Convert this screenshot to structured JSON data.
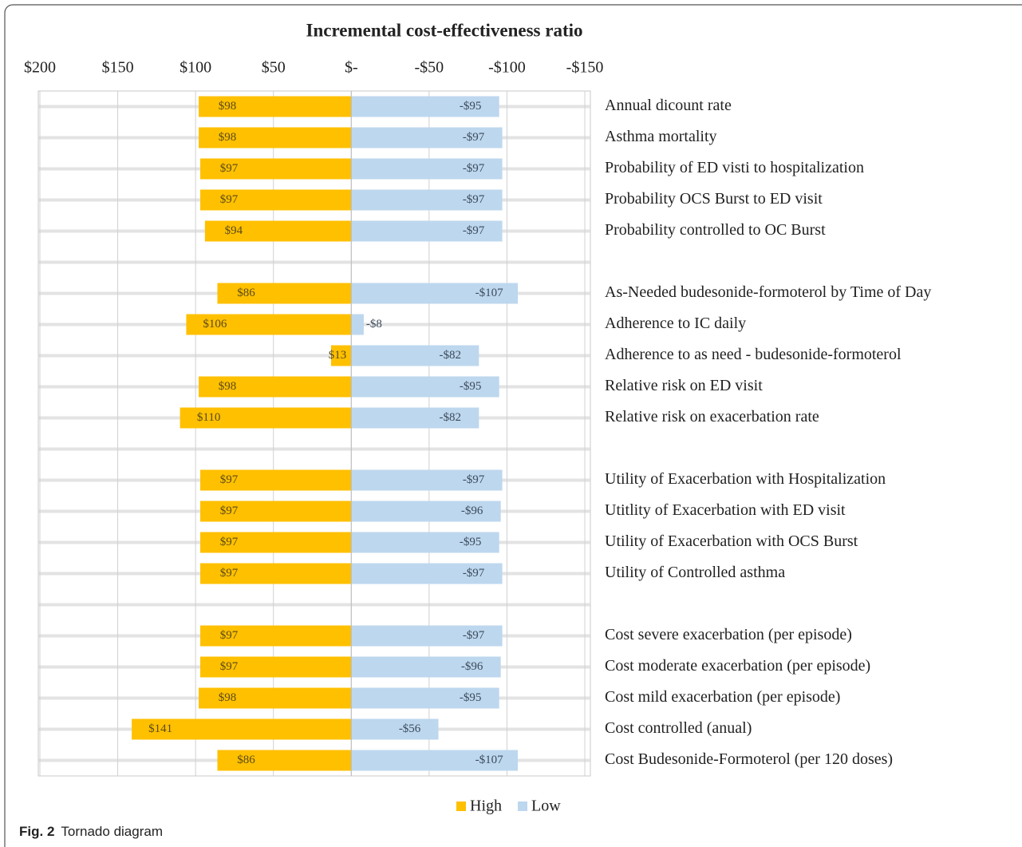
{
  "chart_data": {
    "type": "tornado",
    "title": "Incremental cost-effectiveness ratio",
    "categories": [
      "Annual dicount rate",
      "Asthma mortality",
      "Probability of ED visti to hospitalization",
      "Probability OCS Burst to ED visit",
      "Probability controlled to OC Burst",
      null,
      "As-Needed budesonide-formoterol  by Time of Day",
      "Adherence to IC daily",
      "Adherence to as need - budesonide-formoterol",
      "Relative risk on ED visit",
      "Relative risk on exacerbation rate",
      null,
      "Utility of Exacerbation with Hospitalization",
      "Utitlity of Exacerbation with  ED visit",
      "Utility of Exacerbation with OCS Burst",
      "Utility of Controlled asthma",
      null,
      "Cost  severe exacerbation  (per episode)",
      "Cost moderate exacerbation  (per episode)",
      "Cost mild exacerbation  (per episode)",
      "Cost controlled (anual)",
      "Cost Budesonide-Formoterol (per 120 doses)"
    ],
    "series": [
      {
        "name": "High",
        "color": "#ffc000",
        "values": [
          98,
          98,
          97,
          97,
          94,
          null,
          86,
          106,
          13,
          98,
          110,
          null,
          97,
          97,
          97,
          97,
          null,
          97,
          97,
          98,
          141,
          86
        ],
        "value_labels": [
          "$98",
          "$98",
          "$97",
          "$97",
          "$94",
          null,
          "$86",
          "$106",
          "$13",
          "$98",
          "$110",
          null,
          "$97",
          "$97",
          "$97",
          "$97",
          null,
          "$97",
          "$97",
          "$98",
          "$141",
          "$86"
        ]
      },
      {
        "name": "Low",
        "color": "#bdd7ee",
        "values": [
          -95,
          -97,
          -97,
          -97,
          -97,
          null,
          -107,
          -8,
          -82,
          -95,
          -82,
          null,
          -97,
          -96,
          -95,
          -97,
          null,
          -97,
          -96,
          -95,
          -56,
          -107
        ],
        "value_labels": [
          "-$95",
          "-$97",
          "-$97",
          "-$97",
          "-$97",
          null,
          "-$107",
          "-$8",
          "-$82",
          "-$95",
          "-$82",
          null,
          "-$97",
          "-$96",
          "-$95",
          "-$97",
          null,
          "-$97",
          "-$96",
          "-$95",
          "-$56",
          "-$107"
        ]
      }
    ],
    "xlim": [
      200,
      -150
    ],
    "xticks": [
      {
        "value": 200,
        "label": "$200"
      },
      {
        "value": 150,
        "label": "$150"
      },
      {
        "value": 100,
        "label": "$100"
      },
      {
        "value": 50,
        "label": "$50"
      },
      {
        "value": 0,
        "label": "$-"
      },
      {
        "value": -50,
        "label": "-$50"
      },
      {
        "value": -100,
        "label": "-$100"
      },
      {
        "value": -150,
        "label": "-$150"
      }
    ],
    "grid": true,
    "legend": "bottom"
  },
  "caption": {
    "label": "Fig. 2",
    "text": "Tornado diagram"
  }
}
